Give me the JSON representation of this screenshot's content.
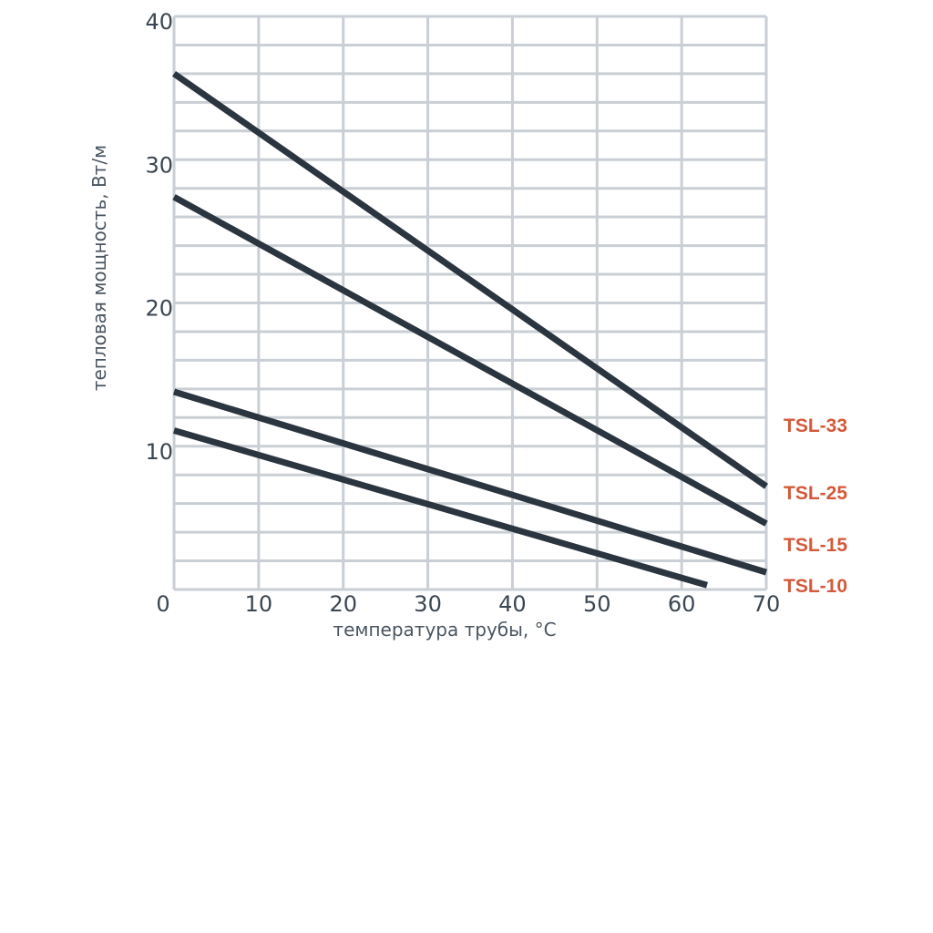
{
  "chart_data": {
    "type": "line",
    "title": "",
    "xlabel": "температура трубы, °C",
    "ylabel": "тепловая мощность, Вт/м",
    "xlim": [
      0,
      70
    ],
    "ylim": [
      0,
      40
    ],
    "x_ticks": [
      "0",
      "10",
      "20",
      "30",
      "40",
      "50",
      "60",
      "70"
    ],
    "y_ticks": [
      "10",
      "20",
      "30",
      "40"
    ],
    "grid": true,
    "legend": "right-end-labels",
    "series": [
      {
        "name": "TSL-33",
        "x": [
          0,
          70
        ],
        "y": [
          36.0,
          7.2
        ]
      },
      {
        "name": "TSL-25",
        "x": [
          0,
          70
        ],
        "y": [
          27.4,
          4.6
        ]
      },
      {
        "name": "TSL-15",
        "x": [
          0,
          70
        ],
        "y": [
          13.8,
          1.2
        ]
      },
      {
        "name": "TSL-10",
        "x": [
          0,
          63
        ],
        "y": [
          11.1,
          0.3
        ]
      }
    ]
  },
  "colors": {
    "line": "#2b3540",
    "grid": "#c9cfd4",
    "label": "#d4593a"
  }
}
